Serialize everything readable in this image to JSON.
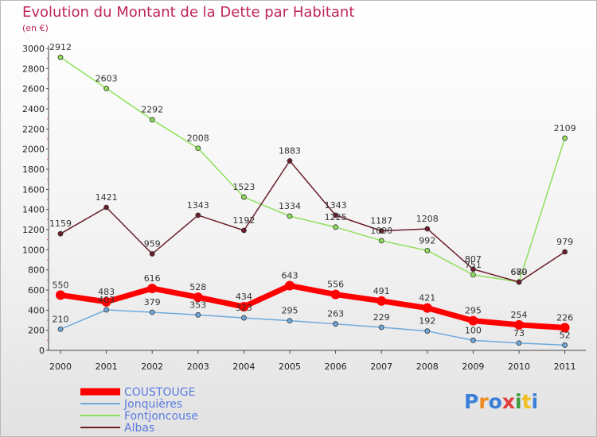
{
  "header": {
    "title": "Evolution du Montant de la Dette par Habitant",
    "unit": "(en €)"
  },
  "logo": {
    "text": "Proxiti",
    "colors": [
      "#3a7fd8",
      "#f08a1c",
      "#3a7fd8",
      "#e23c3c",
      "#3a9b3a",
      "#f0c020",
      "#3a7fd8"
    ]
  },
  "colors": {
    "title": "#c0245c",
    "axis": "#444444",
    "grid_tick": "#e0457a"
  },
  "chart_data": {
    "type": "line",
    "title": "Evolution du Montant de la Dette par Habitant",
    "ylabel": "(en €)",
    "xlabel": "",
    "ylim": [
      0,
      3000
    ],
    "yticks": [
      0,
      200,
      400,
      600,
      800,
      1000,
      1200,
      1400,
      1600,
      1800,
      2000,
      2200,
      2400,
      2600,
      2800,
      3000
    ],
    "x": [
      "2000",
      "2001",
      "2002",
      "2003",
      "2004",
      "2005",
      "2006",
      "2007",
      "2008",
      "2009",
      "2010",
      "2011"
    ],
    "grid": false,
    "legend_position": "bottom-left",
    "series": [
      {
        "name": "COUSTOUGE",
        "color": "#ff0000",
        "values": [
          550,
          483,
          616,
          528,
          434,
          643,
          556,
          491,
          421,
          295,
          254,
          226
        ],
        "labels": [
          "550",
          "483",
          "616",
          "528",
          "434",
          "643",
          "556",
          "491",
          "421",
          "295",
          "254",
          "226"
        ]
      },
      {
        "name": "Jonquières",
        "color": "#6fa8dc",
        "values": [
          210,
          403,
          379,
          353,
          323,
          295,
          263,
          229,
          192,
          100,
          73,
          52
        ],
        "labels": [
          "210",
          "403",
          "379",
          "353",
          "323",
          "295",
          "263",
          "229",
          "192",
          "100",
          "73",
          "52"
        ]
      },
      {
        "name": "Fontjoncouse",
        "color": "#8ee05a",
        "values": [
          2912,
          2603,
          2292,
          2008,
          1523,
          1334,
          1225,
          1090,
          992,
          751,
          680,
          2109
        ],
        "labels": [
          "2912",
          "2603",
          "2292",
          "2008",
          "1523",
          "1334",
          "1225",
          "1090",
          "992",
          "751",
          "680",
          "2109"
        ]
      },
      {
        "name": "Albas",
        "color": "#6b1e2a",
        "values": [
          1159,
          1421,
          959,
          1343,
          1192,
          1883,
          1343,
          1187,
          1208,
          807,
          679,
          979
        ],
        "labels": [
          "1159",
          "1421",
          "959",
          "1343",
          "1192",
          "1883",
          "1343",
          "1187",
          "1208",
          "807",
          "679",
          "979"
        ]
      }
    ]
  }
}
